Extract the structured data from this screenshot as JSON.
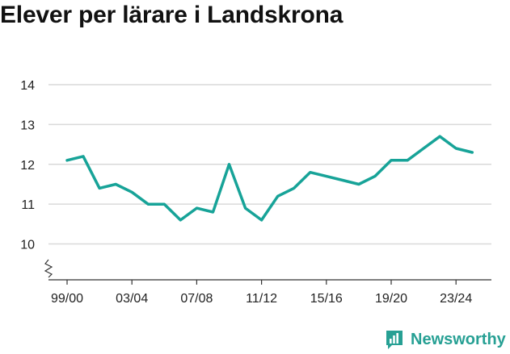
{
  "title": "Elever per lärare i Landskrona",
  "brand": {
    "name": "Newsworthy",
    "icon": "newsworthy-logo-icon"
  },
  "colors": {
    "line": "#17a398",
    "grid": "#d9d9d9",
    "axis": "#333333",
    "brand": "#27a094"
  },
  "chart_data": {
    "type": "line",
    "title": "Elever per lärare i Landskrona",
    "xlabel": "",
    "ylabel": "",
    "ylim": [
      9.1,
      14
    ],
    "y_axis_break": true,
    "yticks": [
      10,
      11,
      12,
      13,
      14
    ],
    "grid": "horizontal",
    "x_tick_labels": [
      "99/00",
      "03/04",
      "07/08",
      "11/12",
      "15/16",
      "19/20",
      "23/24"
    ],
    "x_tick_index": [
      0,
      4,
      8,
      12,
      16,
      20,
      24
    ],
    "categories": [
      "99/00",
      "00/01",
      "01/02",
      "02/03",
      "03/04",
      "04/05",
      "05/06",
      "06/07",
      "07/08",
      "08/09",
      "09/10",
      "10/11",
      "11/12",
      "12/13",
      "13/14",
      "14/15",
      "15/16",
      "16/17",
      "17/18",
      "18/19",
      "19/20",
      "20/21",
      "21/22",
      "22/23",
      "23/24",
      "24/25"
    ],
    "series": [
      {
        "values": [
          12.1,
          12.2,
          11.4,
          11.5,
          11.3,
          11.0,
          11.0,
          10.6,
          10.9,
          10.8,
          12.0,
          10.9,
          10.6,
          11.2,
          11.4,
          11.8,
          11.7,
          11.6,
          11.5,
          11.7,
          12.1,
          12.1,
          12.4,
          12.7,
          12.4,
          12.3
        ]
      }
    ]
  }
}
